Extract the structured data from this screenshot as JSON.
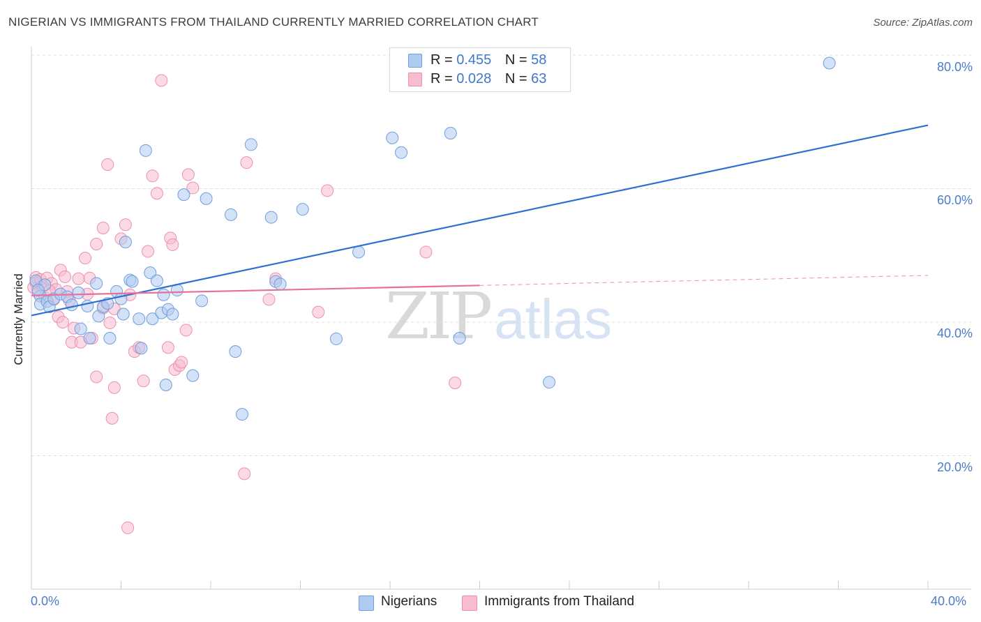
{
  "title": "NIGERIAN VS IMMIGRANTS FROM THAILAND CURRENTLY MARRIED CORRELATION CHART",
  "source": "Source: ZipAtlas.com",
  "watermark": {
    "zip": "ZIP",
    "atlas": "atlas"
  },
  "legend_top": [
    {
      "r_label": "R =",
      "r_value": "0.455",
      "n_label": "N =",
      "n_value": "58"
    },
    {
      "r_label": "R =",
      "r_value": "0.028",
      "n_label": "N =",
      "n_value": "63"
    }
  ],
  "legend_bottom": [
    "Nigerians",
    "Immigrants from Thailand"
  ],
  "colors": {
    "blue_fill": "#aecbf1",
    "blue_stroke": "#6f9ede",
    "blue_line": "#2e6fcf",
    "pink_fill": "#f7bcd0",
    "pink_stroke": "#ee8fb0",
    "pink_line": "#e5729c",
    "grid": "#dcdcdc",
    "axis_text": "#4a7cc9"
  },
  "chart_data": {
    "type": "scatter",
    "title": "NIGERIAN VS IMMIGRANTS FROM THAILAND CURRENTLY MARRIED CORRELATION CHART",
    "xlabel": "",
    "ylabel": "Currently Married",
    "xlim": [
      0,
      40
    ],
    "ylim": [
      0,
      82
    ],
    "x_tick_labels": [
      "0.0%",
      "40.0%"
    ],
    "y_ticks": [
      20,
      40,
      60,
      80
    ],
    "y_tick_labels": [
      "20.0%",
      "40.0%",
      "60.0%",
      "80.0%"
    ],
    "grid": true,
    "legend_position": "top-center",
    "series": [
      {
        "name": "Nigerians",
        "r": 0.455,
        "n": 58,
        "trend": {
          "x": [
            0,
            40
          ],
          "y": [
            41.0,
            69.5
          ]
        },
        "points": [
          [
            0.2,
            46.2
          ],
          [
            0.4,
            43.9
          ],
          [
            0.4,
            42.7
          ],
          [
            0.6,
            45.6
          ],
          [
            0.7,
            43.1
          ],
          [
            0.8,
            42.3
          ],
          [
            1.0,
            43.5
          ],
          [
            1.3,
            44.2
          ],
          [
            1.6,
            43.8
          ],
          [
            1.8,
            42.6
          ],
          [
            2.1,
            44.4
          ],
          [
            2.2,
            39.0
          ],
          [
            2.5,
            42.4
          ],
          [
            2.6,
            37.6
          ],
          [
            2.9,
            45.8
          ],
          [
            3.0,
            40.9
          ],
          [
            3.2,
            42.3
          ],
          [
            3.4,
            42.8
          ],
          [
            3.5,
            37.6
          ],
          [
            3.8,
            44.6
          ],
          [
            4.0,
            43.5
          ],
          [
            4.1,
            41.2
          ],
          [
            4.2,
            52.0
          ],
          [
            4.4,
            46.3
          ],
          [
            4.5,
            46.1
          ],
          [
            4.8,
            40.5
          ],
          [
            4.9,
            36.1
          ],
          [
            5.1,
            65.7
          ],
          [
            5.3,
            47.4
          ],
          [
            5.4,
            40.5
          ],
          [
            5.6,
            46.2
          ],
          [
            5.8,
            41.4
          ],
          [
            5.9,
            44.1
          ],
          [
            6.0,
            30.6
          ],
          [
            6.1,
            41.9
          ],
          [
            6.3,
            41.2
          ],
          [
            6.5,
            44.8
          ],
          [
            6.8,
            59.1
          ],
          [
            7.2,
            32.0
          ],
          [
            7.6,
            43.2
          ],
          [
            7.8,
            58.5
          ],
          [
            8.9,
            56.1
          ],
          [
            9.1,
            35.6
          ],
          [
            9.4,
            26.2
          ],
          [
            9.8,
            66.6
          ],
          [
            10.7,
            55.7
          ],
          [
            10.9,
            46.1
          ],
          [
            11.1,
            45.7
          ],
          [
            12.1,
            56.9
          ],
          [
            13.6,
            37.5
          ],
          [
            14.6,
            50.5
          ],
          [
            16.1,
            67.6
          ],
          [
            16.5,
            65.4
          ],
          [
            18.7,
            68.3
          ],
          [
            19.1,
            37.6
          ],
          [
            23.1,
            31.0
          ],
          [
            35.6,
            78.8
          ],
          [
            0.3,
            44.8
          ]
        ]
      },
      {
        "name": "Immigrants from Thailand",
        "r": 0.028,
        "n": 63,
        "trend": {
          "x": [
            0,
            20
          ],
          "y": [
            44.0,
            45.5
          ]
        },
        "trend_dashed_extension": {
          "x": [
            20,
            40
          ],
          "y": [
            45.5,
            47.0
          ]
        },
        "points": [
          [
            0.1,
            45.2
          ],
          [
            0.2,
            46.7
          ],
          [
            0.2,
            45.9
          ],
          [
            0.3,
            44.4
          ],
          [
            0.4,
            46.4
          ],
          [
            0.5,
            45.4
          ],
          [
            0.6,
            43.7
          ],
          [
            0.7,
            46.6
          ],
          [
            0.9,
            45.8
          ],
          [
            1.0,
            43.4
          ],
          [
            1.1,
            44.9
          ],
          [
            1.2,
            40.8
          ],
          [
            1.3,
            47.8
          ],
          [
            1.4,
            40.0
          ],
          [
            1.6,
            44.6
          ],
          [
            1.7,
            43.2
          ],
          [
            1.8,
            37.0
          ],
          [
            1.9,
            39.1
          ],
          [
            2.1,
            46.5
          ],
          [
            2.2,
            37.0
          ],
          [
            2.4,
            49.6
          ],
          [
            2.5,
            44.2
          ],
          [
            2.6,
            46.6
          ],
          [
            2.7,
            37.6
          ],
          [
            2.9,
            31.8
          ],
          [
            2.9,
            51.7
          ],
          [
            3.2,
            42.1
          ],
          [
            3.2,
            54.1
          ],
          [
            3.4,
            63.6
          ],
          [
            3.5,
            39.9
          ],
          [
            3.6,
            25.6
          ],
          [
            3.7,
            30.2
          ],
          [
            4.0,
            52.5
          ],
          [
            4.2,
            54.6
          ],
          [
            4.3,
            9.2
          ],
          [
            4.4,
            44.1
          ],
          [
            4.6,
            35.6
          ],
          [
            4.8,
            36.2
          ],
          [
            5.0,
            31.2
          ],
          [
            5.2,
            50.6
          ],
          [
            5.4,
            61.9
          ],
          [
            5.6,
            59.3
          ],
          [
            5.8,
            76.2
          ],
          [
            6.1,
            36.2
          ],
          [
            6.2,
            52.6
          ],
          [
            6.3,
            51.6
          ],
          [
            6.4,
            32.9
          ],
          [
            6.6,
            33.5
          ],
          [
            6.7,
            34.0
          ],
          [
            6.9,
            38.8
          ],
          [
            7.0,
            62.1
          ],
          [
            7.2,
            60.1
          ],
          [
            9.5,
            17.3
          ],
          [
            9.6,
            63.9
          ],
          [
            10.6,
            43.4
          ],
          [
            10.9,
            46.5
          ],
          [
            13.2,
            59.7
          ],
          [
            12.8,
            41.5
          ],
          [
            17.6,
            50.5
          ],
          [
            18.9,
            30.9
          ],
          [
            3.7,
            42.0
          ],
          [
            1.5,
            46.8
          ],
          [
            0.8,
            44.7
          ]
        ]
      }
    ]
  }
}
